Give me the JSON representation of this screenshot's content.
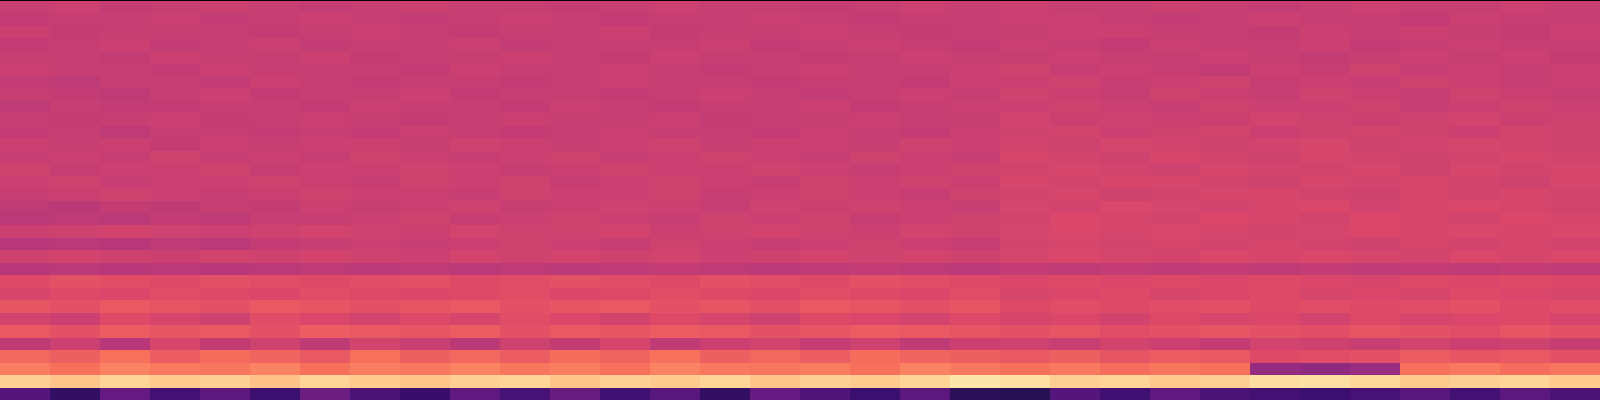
{
  "chart_data": {
    "type": "heatmap",
    "tick_labels": false,
    "zlim": [
      0,
      1
    ],
    "cells": [
      [
        0.54,
        0.55,
        0.53,
        0.54,
        0.55,
        0.54,
        0.53,
        0.54,
        0.55,
        0.54,
        0.54,
        0.53,
        0.54,
        0.55,
        0.54,
        0.54,
        0.53,
        0.54,
        0.55,
        0.54,
        0.55,
        0.54,
        0.54,
        0.55,
        0.54,
        0.53,
        0.54,
        0.55,
        0.54,
        0.54,
        0.55,
        0.54
      ],
      [
        0.53,
        0.54,
        0.54,
        0.55,
        0.53,
        0.54,
        0.55,
        0.54,
        0.53,
        0.54,
        0.55,
        0.54,
        0.53,
        0.54,
        0.54,
        0.55,
        0.54,
        0.53,
        0.54,
        0.54,
        0.55,
        0.55,
        0.54,
        0.53,
        0.54,
        0.55,
        0.54,
        0.54,
        0.53,
        0.55,
        0.54,
        0.54
      ],
      [
        0.55,
        0.53,
        0.54,
        0.54,
        0.54,
        0.53,
        0.54,
        0.55,
        0.54,
        0.53,
        0.54,
        0.54,
        0.55,
        0.53,
        0.54,
        0.54,
        0.55,
        0.54,
        0.53,
        0.54,
        0.54,
        0.55,
        0.55,
        0.54,
        0.54,
        0.53,
        0.55,
        0.54,
        0.55,
        0.54,
        0.53,
        0.55
      ],
      [
        0.53,
        0.54,
        0.55,
        0.53,
        0.54,
        0.55,
        0.53,
        0.54,
        0.54,
        0.55,
        0.53,
        0.54,
        0.54,
        0.54,
        0.55,
        0.53,
        0.54,
        0.55,
        0.54,
        0.53,
        0.55,
        0.54,
        0.53,
        0.55,
        0.54,
        0.54,
        0.55,
        0.53,
        0.54,
        0.55,
        0.54,
        0.54
      ],
      [
        0.54,
        0.54,
        0.53,
        0.55,
        0.54,
        0.54,
        0.55,
        0.53,
        0.54,
        0.54,
        0.55,
        0.54,
        0.53,
        0.55,
        0.54,
        0.54,
        0.53,
        0.54,
        0.55,
        0.54,
        0.54,
        0.55,
        0.54,
        0.54,
        0.55,
        0.54,
        0.53,
        0.54,
        0.55,
        0.54,
        0.55,
        0.53
      ],
      [
        0.55,
        0.54,
        0.54,
        0.53,
        0.55,
        0.54,
        0.54,
        0.54,
        0.53,
        0.55,
        0.54,
        0.54,
        0.55,
        0.54,
        0.53,
        0.54,
        0.55,
        0.54,
        0.54,
        0.55,
        0.56,
        0.54,
        0.55,
        0.54,
        0.53,
        0.55,
        0.54,
        0.56,
        0.54,
        0.55,
        0.54,
        0.55
      ],
      [
        0.53,
        0.52,
        0.54,
        0.54,
        0.53,
        0.55,
        0.54,
        0.53,
        0.54,
        0.54,
        0.53,
        0.54,
        0.55,
        0.54,
        0.54,
        0.53,
        0.54,
        0.54,
        0.53,
        0.55,
        0.55,
        0.56,
        0.54,
        0.55,
        0.56,
        0.54,
        0.55,
        0.54,
        0.56,
        0.55,
        0.54,
        0.55
      ],
      [
        0.54,
        0.53,
        0.52,
        0.54,
        0.55,
        0.53,
        0.54,
        0.54,
        0.55,
        0.53,
        0.54,
        0.54,
        0.53,
        0.54,
        0.55,
        0.54,
        0.53,
        0.54,
        0.55,
        0.54,
        0.56,
        0.55,
        0.54,
        0.56,
        0.55,
        0.54,
        0.56,
        0.55,
        0.54,
        0.56,
        0.55,
        0.54
      ],
      [
        0.52,
        0.54,
        0.53,
        0.53,
        0.54,
        0.54,
        0.53,
        0.55,
        0.54,
        0.54,
        0.53,
        0.55,
        0.54,
        0.53,
        0.54,
        0.54,
        0.55,
        0.53,
        0.54,
        0.55,
        0.55,
        0.56,
        0.55,
        0.54,
        0.56,
        0.55,
        0.55,
        0.56,
        0.54,
        0.55,
        0.56,
        0.55
      ],
      [
        0.54,
        0.53,
        0.54,
        0.55,
        0.53,
        0.54,
        0.55,
        0.54,
        0.53,
        0.54,
        0.55,
        0.54,
        0.54,
        0.55,
        0.53,
        0.54,
        0.54,
        0.55,
        0.54,
        0.54,
        0.57,
        0.55,
        0.56,
        0.55,
        0.55,
        0.57,
        0.56,
        0.55,
        0.56,
        0.57,
        0.55,
        0.56
      ],
      [
        0.53,
        0.54,
        0.52,
        0.54,
        0.54,
        0.53,
        0.54,
        0.53,
        0.55,
        0.54,
        0.53,
        0.54,
        0.55,
        0.54,
        0.54,
        0.53,
        0.55,
        0.54,
        0.53,
        0.55,
        0.56,
        0.57,
        0.55,
        0.56,
        0.57,
        0.55,
        0.56,
        0.57,
        0.56,
        0.55,
        0.57,
        0.56
      ],
      [
        0.55,
        0.54,
        0.55,
        0.53,
        0.55,
        0.54,
        0.55,
        0.55,
        0.54,
        0.56,
        0.55,
        0.54,
        0.55,
        0.56,
        0.54,
        0.55,
        0.55,
        0.54,
        0.56,
        0.55,
        0.57,
        0.56,
        0.58,
        0.57,
        0.56,
        0.57,
        0.58,
        0.56,
        0.57,
        0.58,
        0.57,
        0.56
      ],
      [
        0.54,
        0.55,
        0.54,
        0.56,
        0.54,
        0.55,
        0.54,
        0.56,
        0.55,
        0.54,
        0.55,
        0.56,
        0.54,
        0.55,
        0.56,
        0.55,
        0.54,
        0.56,
        0.55,
        0.54,
        0.58,
        0.57,
        0.56,
        0.58,
        0.57,
        0.56,
        0.58,
        0.57,
        0.56,
        0.57,
        0.58,
        0.57
      ],
      [
        0.56,
        0.54,
        0.55,
        0.55,
        0.56,
        0.54,
        0.55,
        0.55,
        0.56,
        0.55,
        0.54,
        0.55,
        0.56,
        0.55,
        0.55,
        0.56,
        0.55,
        0.54,
        0.55,
        0.56,
        0.57,
        0.58,
        0.57,
        0.56,
        0.58,
        0.57,
        0.57,
        0.58,
        0.56,
        0.58,
        0.57,
        0.58
      ],
      [
        0.55,
        0.56,
        0.54,
        0.55,
        0.55,
        0.56,
        0.55,
        0.54,
        0.56,
        0.55,
        0.56,
        0.54,
        0.55,
        0.56,
        0.55,
        0.54,
        0.56,
        0.55,
        0.56,
        0.55,
        0.58,
        0.57,
        0.58,
        0.58,
        0.57,
        0.56,
        0.58,
        0.57,
        0.58,
        0.57,
        0.56,
        0.58
      ],
      [
        0.54,
        0.55,
        0.56,
        0.55,
        0.54,
        0.55,
        0.56,
        0.55,
        0.55,
        0.54,
        0.56,
        0.55,
        0.55,
        0.56,
        0.54,
        0.55,
        0.56,
        0.55,
        0.54,
        0.56,
        0.57,
        0.58,
        0.56,
        0.57,
        0.58,
        0.58,
        0.57,
        0.56,
        0.58,
        0.57,
        0.58,
        0.57
      ],
      [
        0.52,
        0.51,
        0.53,
        0.52,
        0.54,
        0.53,
        0.55,
        0.54,
        0.55,
        0.56,
        0.54,
        0.55,
        0.56,
        0.55,
        0.54,
        0.56,
        0.55,
        0.56,
        0.55,
        0.54,
        0.58,
        0.57,
        0.59,
        0.58,
        0.57,
        0.58,
        0.59,
        0.57,
        0.58,
        0.59,
        0.58,
        0.57
      ],
      [
        0.51,
        0.52,
        0.51,
        0.53,
        0.52,
        0.54,
        0.54,
        0.55,
        0.56,
        0.54,
        0.55,
        0.56,
        0.55,
        0.54,
        0.56,
        0.55,
        0.56,
        0.54,
        0.55,
        0.56,
        0.57,
        0.59,
        0.58,
        0.57,
        0.59,
        0.58,
        0.57,
        0.59,
        0.58,
        0.57,
        0.59,
        0.58
      ],
      [
        0.55,
        0.56,
        0.57,
        0.56,
        0.55,
        0.56,
        0.57,
        0.56,
        0.55,
        0.57,
        0.56,
        0.56,
        0.57,
        0.55,
        0.56,
        0.57,
        0.56,
        0.55,
        0.57,
        0.56,
        0.58,
        0.59,
        0.58,
        0.59,
        0.58,
        0.57,
        0.58,
        0.59,
        0.58,
        0.59,
        0.58,
        0.59
      ],
      [
        0.5,
        0.51,
        0.5,
        0.52,
        0.51,
        0.53,
        0.54,
        0.55,
        0.54,
        0.55,
        0.56,
        0.55,
        0.54,
        0.56,
        0.55,
        0.54,
        0.55,
        0.56,
        0.55,
        0.54,
        0.57,
        0.58,
        0.57,
        0.58,
        0.57,
        0.58,
        0.57,
        0.56,
        0.58,
        0.57,
        0.58,
        0.57
      ],
      [
        0.56,
        0.57,
        0.56,
        0.55,
        0.57,
        0.56,
        0.57,
        0.56,
        0.55,
        0.57,
        0.56,
        0.57,
        0.56,
        0.57,
        0.55,
        0.56,
        0.57,
        0.56,
        0.57,
        0.56,
        0.58,
        0.59,
        0.58,
        0.57,
        0.59,
        0.58,
        0.59,
        0.58,
        0.57,
        0.59,
        0.58,
        0.59
      ],
      [
        0.5,
        0.51,
        0.5,
        0.51,
        0.5,
        0.51,
        0.52,
        0.51,
        0.52,
        0.51,
        0.52,
        0.51,
        0.52,
        0.53,
        0.52,
        0.51,
        0.52,
        0.53,
        0.52,
        0.51,
        0.53,
        0.52,
        0.53,
        0.52,
        0.53,
        0.52,
        0.53,
        0.52,
        0.53,
        0.52,
        0.53,
        0.52
      ],
      [
        0.6,
        0.62,
        0.61,
        0.6,
        0.62,
        0.61,
        0.6,
        0.61,
        0.62,
        0.6,
        0.61,
        0.62,
        0.61,
        0.6,
        0.62,
        0.61,
        0.6,
        0.62,
        0.61,
        0.6,
        0.59,
        0.6,
        0.59,
        0.6,
        0.59,
        0.6,
        0.59,
        0.58,
        0.6,
        0.59,
        0.6,
        0.59
      ],
      [
        0.58,
        0.6,
        0.59,
        0.61,
        0.6,
        0.59,
        0.61,
        0.6,
        0.59,
        0.6,
        0.61,
        0.59,
        0.6,
        0.61,
        0.6,
        0.59,
        0.61,
        0.6,
        0.59,
        0.61,
        0.58,
        0.59,
        0.6,
        0.58,
        0.59,
        0.6,
        0.58,
        0.59,
        0.58,
        0.6,
        0.59,
        0.58
      ],
      [
        0.63,
        0.62,
        0.64,
        0.63,
        0.62,
        0.64,
        0.63,
        0.62,
        0.63,
        0.64,
        0.62,
        0.63,
        0.64,
        0.62,
        0.63,
        0.62,
        0.64,
        0.63,
        0.62,
        0.63,
        0.6,
        0.61,
        0.6,
        0.61,
        0.62,
        0.6,
        0.61,
        0.6,
        0.61,
        0.62,
        0.6,
        0.61
      ],
      [
        0.57,
        0.55,
        0.6,
        0.58,
        0.56,
        0.61,
        0.59,
        0.57,
        0.6,
        0.58,
        0.61,
        0.59,
        0.57,
        0.6,
        0.58,
        0.56,
        0.6,
        0.59,
        0.57,
        0.6,
        0.58,
        0.59,
        0.57,
        0.6,
        0.58,
        0.59,
        0.57,
        0.6,
        0.58,
        0.59,
        0.6,
        0.58
      ],
      [
        0.64,
        0.62,
        0.65,
        0.63,
        0.64,
        0.62,
        0.65,
        0.64,
        0.63,
        0.65,
        0.62,
        0.64,
        0.63,
        0.65,
        0.64,
        0.62,
        0.63,
        0.65,
        0.64,
        0.63,
        0.62,
        0.63,
        0.61,
        0.62,
        0.63,
        0.62,
        0.61,
        0.63,
        0.62,
        0.61,
        0.63,
        0.62
      ],
      [
        0.52,
        0.55,
        0.5,
        0.58,
        0.53,
        0.56,
        0.52,
        0.57,
        0.54,
        0.51,
        0.56,
        0.53,
        0.58,
        0.52,
        0.55,
        0.57,
        0.53,
        0.56,
        0.52,
        0.55,
        0.56,
        0.54,
        0.57,
        0.55,
        0.53,
        0.57,
        0.56,
        0.54,
        0.57,
        0.55,
        0.56,
        0.54
      ],
      [
        0.68,
        0.66,
        0.7,
        0.65,
        0.69,
        0.67,
        0.64,
        0.7,
        0.66,
        0.68,
        0.65,
        0.69,
        0.67,
        0.7,
        0.66,
        0.68,
        0.65,
        0.69,
        0.67,
        0.66,
        0.64,
        0.66,
        0.63,
        0.65,
        0.64,
        0.6,
        0.61,
        0.62,
        0.65,
        0.63,
        0.64,
        0.62
      ],
      [
        0.73,
        0.7,
        0.74,
        0.72,
        0.71,
        0.74,
        0.7,
        0.73,
        0.72,
        0.74,
        0.71,
        0.73,
        0.7,
        0.74,
        0.72,
        0.71,
        0.73,
        0.7,
        0.74,
        0.72,
        0.7,
        0.72,
        0.69,
        0.71,
        0.7,
        0.42,
        0.41,
        0.43,
        0.7,
        0.72,
        0.69,
        0.71
      ],
      [
        0.9,
        0.88,
        0.91,
        0.89,
        0.9,
        0.87,
        0.91,
        0.89,
        0.88,
        0.9,
        0.91,
        0.88,
        0.9,
        0.89,
        0.91,
        0.88,
        0.9,
        0.89,
        0.91,
        0.95,
        0.94,
        0.9,
        0.91,
        0.89,
        0.9,
        0.93,
        0.94,
        0.92,
        0.89,
        0.9,
        0.91,
        0.89
      ],
      [
        0.26,
        0.18,
        0.3,
        0.22,
        0.28,
        0.2,
        0.32,
        0.24,
        0.19,
        0.29,
        0.23,
        0.31,
        0.21,
        0.27,
        0.18,
        0.3,
        0.25,
        0.2,
        0.28,
        0.16,
        0.15,
        0.26,
        0.21,
        0.29,
        0.24,
        0.22,
        0.2,
        0.23,
        0.27,
        0.22,
        0.28,
        0.24
      ]
    ]
  }
}
